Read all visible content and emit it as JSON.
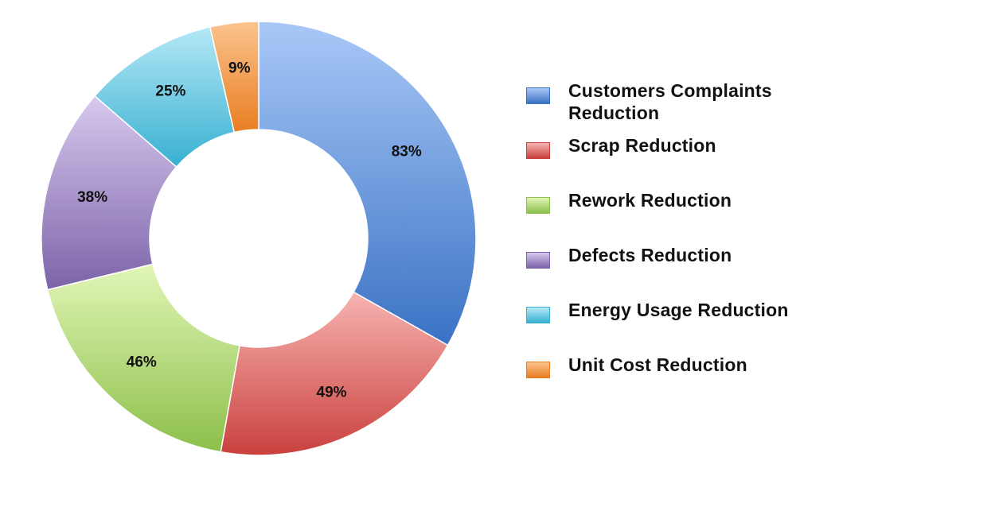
{
  "chart_data": {
    "type": "pie",
    "variant": "donut",
    "title": "",
    "legend_position": "right",
    "series": [
      {
        "name": "Customers Complaints Reduction",
        "value": 83,
        "label": "83%",
        "color": "#5b8fdb",
        "light": "#a9c8f7",
        "dark": "#3a72c4"
      },
      {
        "name": "Scrap Reduction",
        "value": 49,
        "label": "49%",
        "color": "#e06a68",
        "light": "#f7b4b1",
        "dark": "#c9413e"
      },
      {
        "name": "Rework Reduction",
        "value": 46,
        "label": "46%",
        "color": "#a8d36a",
        "light": "#e2f6b7",
        "dark": "#8cbf4a"
      },
      {
        "name": "Defects Reduction",
        "value": 38,
        "label": "38%",
        "color": "#9b86c0",
        "light": "#d7c9ee",
        "dark": "#7c63a9"
      },
      {
        "name": "Energy Usage Reduction",
        "value": 25,
        "label": "25%",
        "color": "#5cc6e2",
        "light": "#b4e8f6",
        "dark": "#38b0d1"
      },
      {
        "name": "Unit Cost Reduction",
        "value": 9,
        "label": "9%",
        "color": "#f39a4a",
        "light": "#fbc48e",
        "dark": "#e97d23"
      }
    ]
  }
}
